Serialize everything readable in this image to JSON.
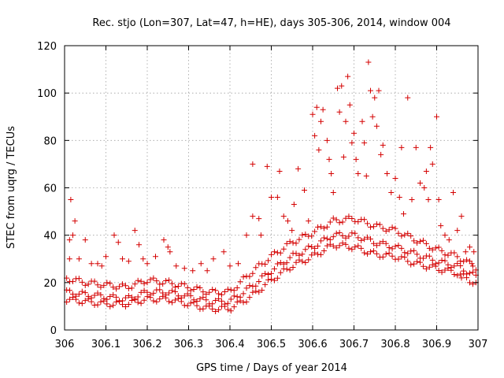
{
  "chart_data": {
    "type": "scatter",
    "title": "Rec. stjo (Lon=307, Lat=47, h=HE), days 305-306, 2014, window 004",
    "xlabel": "GPS time / Days of year 2014",
    "ylabel": "STEC from uqrg / TECUs",
    "xlim": [
      306,
      307
    ],
    "ylim": [
      0,
      120
    ],
    "x_ticks": [
      "306",
      "306.1",
      "306.2",
      "306.3",
      "306.4",
      "306.5",
      "306.6",
      "306.7",
      "306.8",
      "306.9",
      "307"
    ],
    "y_ticks": [
      "0",
      "20",
      "40",
      "60",
      "80",
      "100",
      "120"
    ],
    "grid": true,
    "marker": "+",
    "color": "#d40000",
    "series": [
      {
        "points": [
          [
            306.015,
            55
          ],
          [
            306.025,
            46
          ],
          [
            306.012,
            38
          ],
          [
            306.02,
            40
          ],
          [
            306.035,
            30
          ],
          [
            306.012,
            30
          ],
          [
            306.05,
            38
          ],
          [
            306.065,
            28
          ],
          [
            306.08,
            28
          ],
          [
            306.09,
            27
          ],
          [
            306.1,
            31
          ],
          [
            306.12,
            40
          ],
          [
            306.13,
            37
          ],
          [
            306.14,
            30
          ],
          [
            306.155,
            29
          ],
          [
            306.17,
            42
          ],
          [
            306.18,
            36
          ],
          [
            306.19,
            30
          ],
          [
            306.2,
            28
          ],
          [
            306.22,
            31
          ],
          [
            306.24,
            38
          ],
          [
            306.25,
            35
          ],
          [
            306.255,
            33
          ],
          [
            306.27,
            27
          ],
          [
            306.29,
            26
          ],
          [
            306.31,
            25
          ],
          [
            306.33,
            28
          ],
          [
            306.345,
            25
          ],
          [
            306.36,
            30
          ],
          [
            306.385,
            33
          ],
          [
            306.4,
            27
          ],
          [
            306.42,
            28
          ],
          [
            306.44,
            40
          ],
          [
            306.455,
            48
          ],
          [
            306.455,
            70
          ],
          [
            306.47,
            47
          ],
          [
            306.475,
            40
          ],
          [
            306.49,
            69
          ],
          [
            306.5,
            56
          ],
          [
            306.515,
            56
          ],
          [
            306.52,
            67
          ],
          [
            306.53,
            48
          ],
          [
            306.54,
            46
          ],
          [
            306.55,
            42
          ],
          [
            306.555,
            53
          ],
          [
            306.565,
            68
          ],
          [
            306.58,
            59
          ],
          [
            306.59,
            46
          ],
          [
            306.6,
            91
          ],
          [
            306.605,
            82
          ],
          [
            306.61,
            94
          ],
          [
            306.615,
            76
          ],
          [
            306.62,
            88
          ],
          [
            306.625,
            93
          ],
          [
            306.635,
            80
          ],
          [
            306.64,
            72
          ],
          [
            306.645,
            66
          ],
          [
            306.65,
            58
          ],
          [
            306.66,
            102
          ],
          [
            306.665,
            92
          ],
          [
            306.67,
            103
          ],
          [
            306.675,
            73
          ],
          [
            306.68,
            88
          ],
          [
            306.685,
            107
          ],
          [
            306.69,
            95
          ],
          [
            306.695,
            79
          ],
          [
            306.7,
            83
          ],
          [
            306.705,
            72
          ],
          [
            306.71,
            66
          ],
          [
            306.72,
            88
          ],
          [
            306.725,
            79
          ],
          [
            306.73,
            65
          ],
          [
            306.735,
            113
          ],
          [
            306.74,
            101
          ],
          [
            306.745,
            90
          ],
          [
            306.75,
            98
          ],
          [
            306.755,
            86
          ],
          [
            306.76,
            101
          ],
          [
            306.765,
            74
          ],
          [
            306.77,
            78
          ],
          [
            306.78,
            66
          ],
          [
            306.79,
            58
          ],
          [
            306.8,
            64
          ],
          [
            306.81,
            56
          ],
          [
            306.815,
            77
          ],
          [
            306.82,
            49
          ],
          [
            306.83,
            98
          ],
          [
            306.84,
            55
          ],
          [
            306.85,
            77
          ],
          [
            306.86,
            62
          ],
          [
            306.87,
            60
          ],
          [
            306.875,
            67
          ],
          [
            306.88,
            55
          ],
          [
            306.885,
            77
          ],
          [
            306.89,
            70
          ],
          [
            306.9,
            90
          ],
          [
            306.905,
            55
          ],
          [
            306.91,
            44
          ],
          [
            306.92,
            40
          ],
          [
            306.93,
            38
          ],
          [
            306.94,
            58
          ],
          [
            306.95,
            42
          ],
          [
            306.96,
            48
          ],
          [
            306.97,
            33
          ],
          [
            306.985,
            28
          ],
          [
            306.99,
            33
          ],
          [
            306.98,
            35
          ],
          [
            306.96,
            22
          ]
        ]
      }
    ]
  }
}
